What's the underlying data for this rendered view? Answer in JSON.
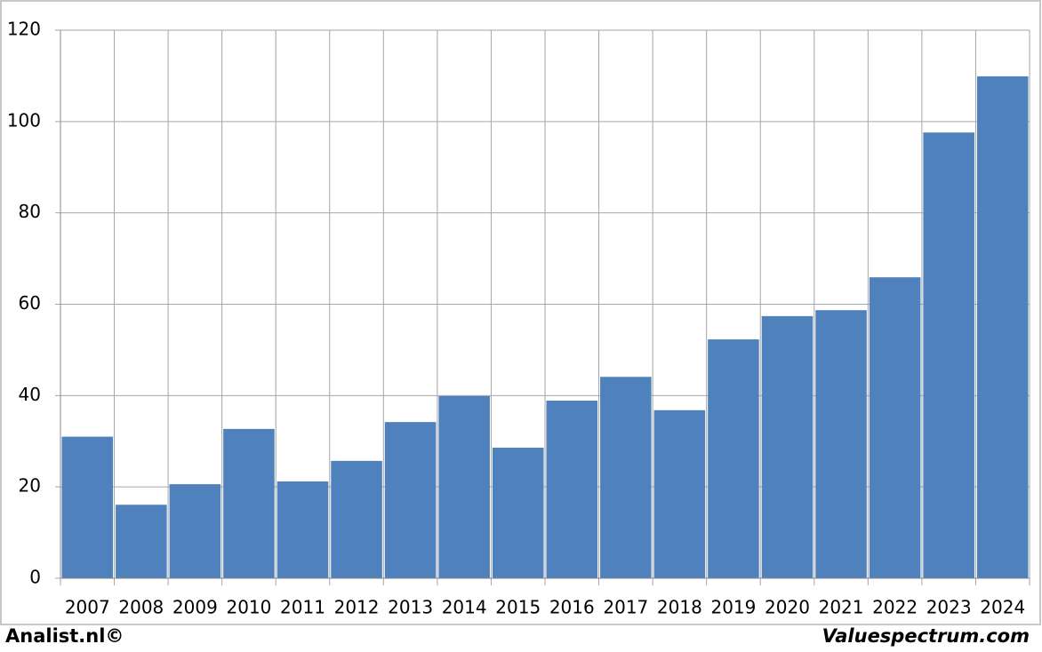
{
  "chart_data": {
    "type": "bar",
    "categories": [
      "2007",
      "2008",
      "2009",
      "2010",
      "2011",
      "2012",
      "2013",
      "2014",
      "2015",
      "2016",
      "2017",
      "2018",
      "2019",
      "2020",
      "2021",
      "2022",
      "2023",
      "2024"
    ],
    "values": [
      31,
      16.1,
      20.6,
      32.7,
      21.2,
      25.7,
      34.2,
      39.9,
      28.6,
      38.9,
      44.1,
      36.8,
      52.3,
      57.4,
      58.7,
      65.9,
      97.6,
      109.9
    ],
    "color": "#4f81bd",
    "ylim": [
      0,
      120
    ],
    "yticks": [
      0,
      20,
      40,
      60,
      80,
      100,
      120
    ],
    "grid": true
  },
  "footer": {
    "left": "Analist.nl©",
    "right": "Valuespectrum.com"
  }
}
